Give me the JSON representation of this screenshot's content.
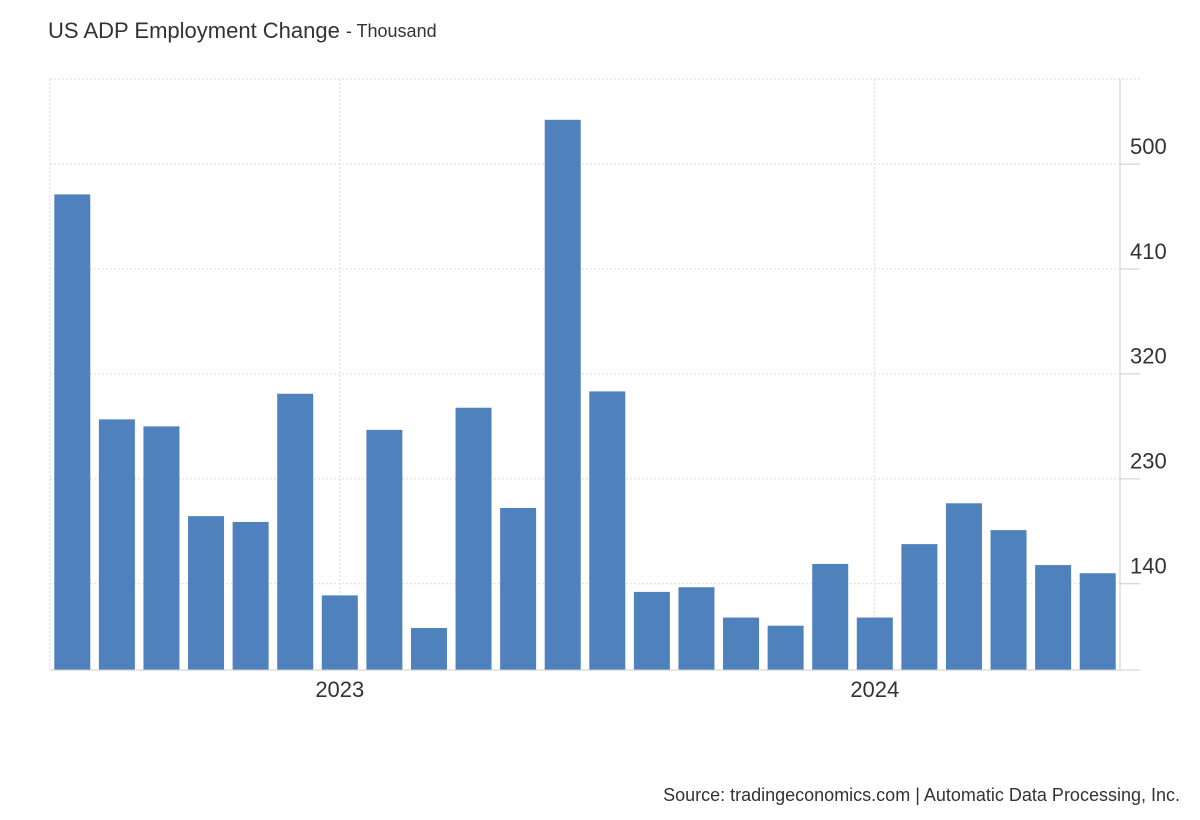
{
  "chart_data": {
    "type": "bar",
    "title": "US ADP Employment Change",
    "subtitle": "- Thousand",
    "categories": [
      null,
      null,
      null,
      null,
      null,
      null,
      "2023",
      null,
      null,
      null,
      null,
      null,
      null,
      null,
      null,
      null,
      null,
      null,
      "2024",
      null,
      null,
      null,
      null,
      null
    ],
    "values": [
      474,
      281,
      275,
      198,
      193,
      303,
      130,
      272,
      102,
      291,
      205,
      538,
      305,
      133,
      137,
      111,
      104,
      157,
      111,
      174,
      209,
      186,
      156,
      149
    ],
    "color": "#4f81bd",
    "ylim": [
      66,
      573
    ],
    "yticks": [
      140,
      230,
      320,
      410,
      500
    ],
    "grid": true,
    "source": "Source: tradingeconomics.com | Automatic Data Processing, Inc."
  }
}
